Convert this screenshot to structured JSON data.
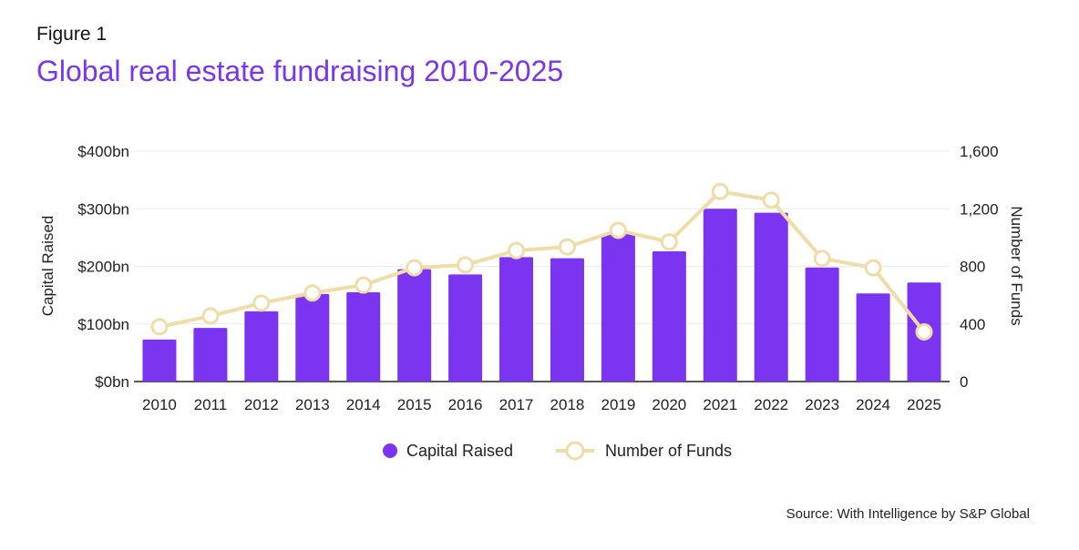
{
  "figure_label": "Figure 1",
  "title": "Global real estate fundraising 2010-2025",
  "source": "Source: With Intelligence by S&P Global",
  "colors": {
    "bar": "#7b35f0",
    "line": "#f0dca8",
    "title": "#7a35ee"
  },
  "chart_data": {
    "type": "bar+line",
    "categories": [
      "2010",
      "2011",
      "2012",
      "2013",
      "2014",
      "2015",
      "2016",
      "2017",
      "2018",
      "2019",
      "2020",
      "2021",
      "2022",
      "2023",
      "2024",
      "2025"
    ],
    "series": [
      {
        "name": "Capital Raised",
        "type": "bar",
        "axis": "left",
        "values": [
          73,
          93,
          122,
          152,
          155,
          195,
          186,
          216,
          214,
          256,
          226,
          300,
          293,
          198,
          153,
          172
        ]
      },
      {
        "name": "Number of Funds",
        "type": "line",
        "axis": "right",
        "values": [
          380,
          455,
          545,
          615,
          670,
          790,
          810,
          910,
          935,
          1050,
          970,
          1320,
          1260,
          855,
          790,
          345
        ]
      }
    ],
    "ylabel": "Capital Raised",
    "y2label": "Number of Funds",
    "ylim": [
      0,
      400
    ],
    "y2lim": [
      0,
      1600
    ],
    "yticks": [
      "$0bn",
      "$100bn",
      "$200bn",
      "$300bn",
      "$400bn"
    ],
    "y2ticks": [
      "0",
      "400",
      "800",
      "1,200",
      "1,600"
    ],
    "grid": true,
    "legend": "bottom-center"
  }
}
